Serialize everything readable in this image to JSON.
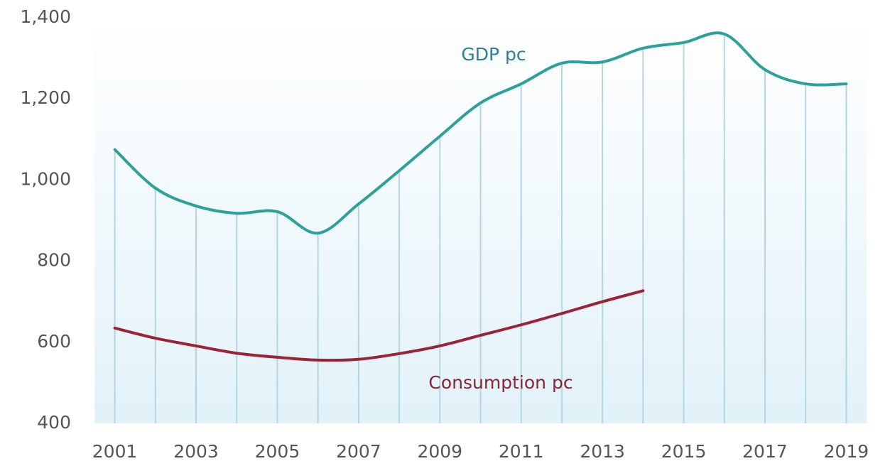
{
  "chart_data": {
    "type": "line",
    "x": [
      2001,
      2002,
      2003,
      2004,
      2005,
      2006,
      2007,
      2008,
      2009,
      2010,
      2011,
      2012,
      2013,
      2014,
      2015,
      2016,
      2017,
      2018,
      2019
    ],
    "series": [
      {
        "name": "GDP pc",
        "color": "#2aa19a",
        "values": [
          1075,
          980,
          936,
          918,
          922,
          869,
          941,
          1023,
          1108,
          1190,
          1237,
          1288,
          1291,
          1325,
          1339,
          1360,
          1272,
          1237,
          1237
        ]
      },
      {
        "name": "Consumption pc",
        "color": "#9b2335",
        "values": [
          635,
          610,
          591,
          573,
          563,
          556,
          558,
          572,
          591,
          617,
          643,
          671,
          700,
          727,
          null,
          null,
          null,
          null,
          null
        ]
      }
    ],
    "xlim": [
      2000.5,
      2019.5
    ],
    "xticks": [
      2001,
      2003,
      2005,
      2007,
      2009,
      2011,
      2013,
      2015,
      2017,
      2019
    ],
    "ylim": [
      400,
      1400
    ],
    "yticks": [
      400,
      600,
      800,
      {
        "value": 1000,
        "label": "1,000"
      },
      {
        "value": 1200,
        "label": "1,200"
      },
      {
        "value": 1400,
        "label": "1,400"
      }
    ]
  }
}
